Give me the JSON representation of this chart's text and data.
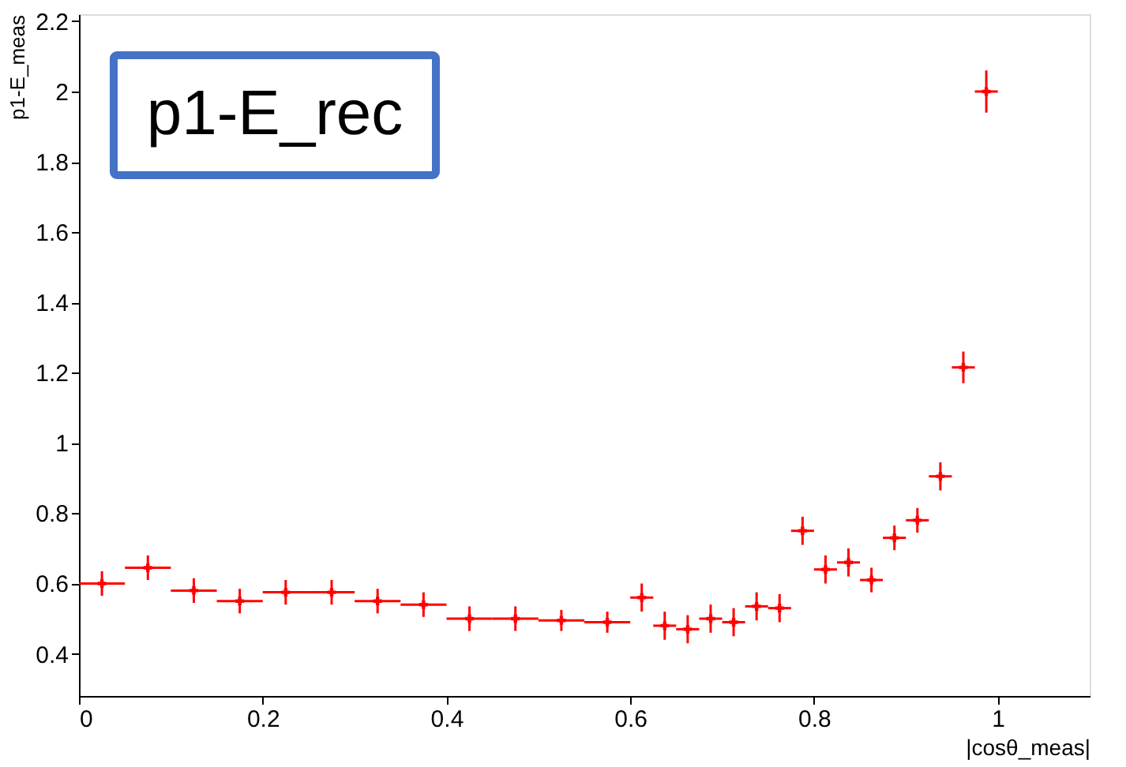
{
  "chart_data": {
    "type": "scatter",
    "title": "p1-E_rec",
    "xlabel": "|cosθ_meas|",
    "ylabel": "p1-E_meas",
    "x": [
      0.025,
      0.075,
      0.125,
      0.175,
      0.225,
      0.275,
      0.325,
      0.375,
      0.425,
      0.475,
      0.525,
      0.575,
      0.6125,
      0.6375,
      0.6625,
      0.6875,
      0.7125,
      0.7375,
      0.7625,
      0.7875,
      0.8125,
      0.8375,
      0.8625,
      0.8875,
      0.9125,
      0.9375,
      0.9625,
      0.9875
    ],
    "series": [
      {
        "color": "#ff0000",
        "values": [
          0.6,
          0.645,
          0.58,
          0.55,
          0.575,
          0.575,
          0.55,
          0.54,
          0.5,
          0.5,
          0.495,
          0.49,
          0.56,
          0.48,
          0.47,
          0.5,
          0.49,
          0.535,
          0.53,
          0.75,
          0.64,
          0.66,
          0.61,
          0.73,
          0.78,
          0.905,
          1.215,
          2.0
        ],
        "errors": [
          0.035,
          0.035,
          0.035,
          0.035,
          0.035,
          0.035,
          0.035,
          0.035,
          0.035,
          0.035,
          0.03,
          0.03,
          0.04,
          0.04,
          0.04,
          0.04,
          0.04,
          0.04,
          0.04,
          0.04,
          0.04,
          0.04,
          0.035,
          0.035,
          0.035,
          0.04,
          0.045,
          0.06
        ],
        "xerrors": [
          0.025,
          0.025,
          0.025,
          0.025,
          0.025,
          0.025,
          0.025,
          0.025,
          0.025,
          0.025,
          0.025,
          0.025,
          0.0125,
          0.0125,
          0.0125,
          0.0125,
          0.0125,
          0.0125,
          0.0125,
          0.0125,
          0.0125,
          0.0125,
          0.0125,
          0.0125,
          0.0125,
          0.0125,
          0.0125,
          0.0125
        ]
      }
    ],
    "marker": "cross",
    "xlim": [
      0,
      1.1
    ],
    "xticks": [
      0,
      0.2,
      0.4,
      0.6,
      0.8,
      1
    ],
    "ylim": [
      0.28,
      2.22
    ],
    "yticks": [
      0.4,
      0.6,
      0.8,
      1,
      1.2,
      1.4,
      1.6,
      1.8,
      2,
      2.2
    ],
    "grid": false
  }
}
